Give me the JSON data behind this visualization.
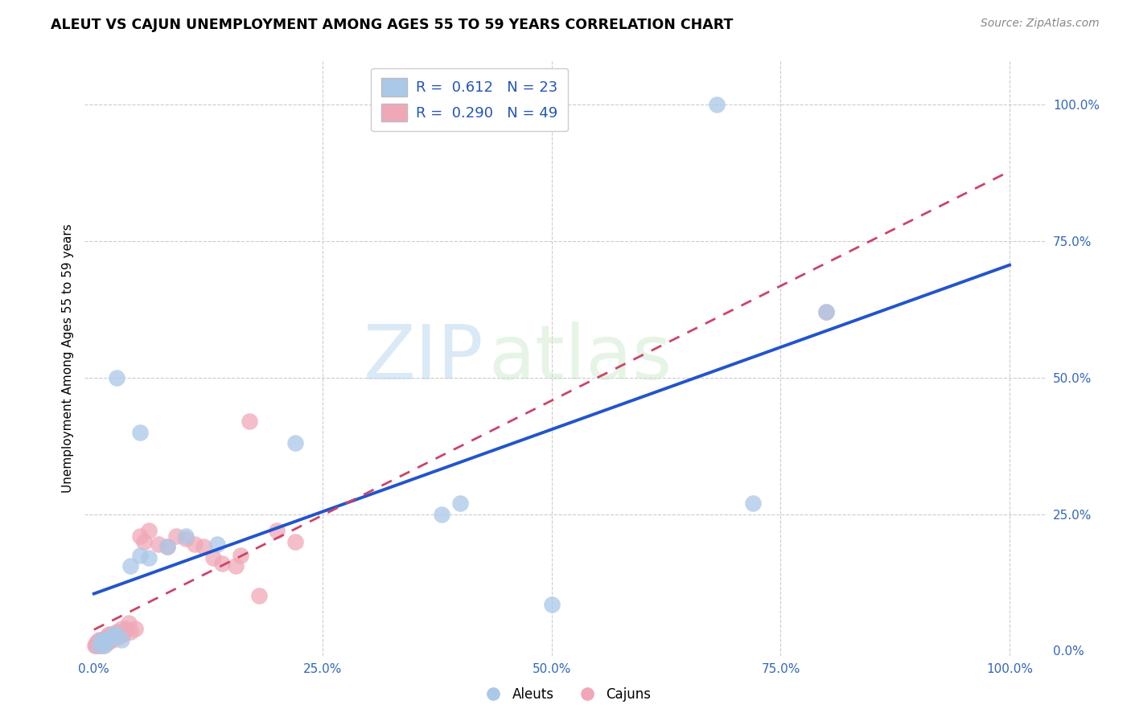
{
  "title": "ALEUT VS CAJUN UNEMPLOYMENT AMONG AGES 55 TO 59 YEARS CORRELATION CHART",
  "source": "Source: ZipAtlas.com",
  "ylabel_label": "Unemployment Among Ages 55 to 59 years",
  "x_tick_labels": [
    "0.0%",
    "25.0%",
    "50.0%",
    "75.0%",
    "100.0%"
  ],
  "x_tick_positions": [
    0,
    0.25,
    0.5,
    0.75,
    1.0
  ],
  "y_tick_labels": [
    "0.0%",
    "25.0%",
    "50.0%",
    "75.0%",
    "100.0%"
  ],
  "y_tick_positions": [
    0,
    0.25,
    0.5,
    0.75,
    1.0
  ],
  "xlim": [
    -0.01,
    1.04
  ],
  "ylim": [
    -0.01,
    1.08
  ],
  "aleut_color": "#aac8e8",
  "cajun_color": "#f0a8b8",
  "aleut_line_color": "#2255cc",
  "cajun_line_color": "#cc4466",
  "aleut_R": "0.612",
  "aleut_N": "23",
  "cajun_R": "0.290",
  "cajun_N": "49",
  "watermark_zip": "ZIP",
  "watermark_atlas": "atlas",
  "aleut_x": [
    0.005,
    0.008,
    0.01,
    0.012,
    0.015,
    0.02,
    0.025,
    0.03,
    0.04,
    0.05,
    0.06,
    0.08,
    0.1,
    0.135,
    0.22,
    0.38,
    0.4,
    0.5,
    0.72,
    0.8,
    0.68,
    0.025,
    0.05
  ],
  "aleut_y": [
    0.01,
    0.02,
    0.015,
    0.01,
    0.02,
    0.03,
    0.03,
    0.02,
    0.155,
    0.175,
    0.17,
    0.19,
    0.21,
    0.195,
    0.38,
    0.25,
    0.27,
    0.085,
    0.27,
    0.62,
    1.0,
    0.5,
    0.4
  ],
  "cajun_x": [
    0.001,
    0.002,
    0.003,
    0.004,
    0.005,
    0.006,
    0.007,
    0.008,
    0.009,
    0.01,
    0.011,
    0.012,
    0.013,
    0.014,
    0.015,
    0.016,
    0.017,
    0.018,
    0.019,
    0.02,
    0.021,
    0.022,
    0.023,
    0.025,
    0.027,
    0.03,
    0.032,
    0.035,
    0.038,
    0.04,
    0.045,
    0.05,
    0.055,
    0.06,
    0.07,
    0.08,
    0.09,
    0.1,
    0.11,
    0.12,
    0.13,
    0.14,
    0.155,
    0.16,
    0.17,
    0.18,
    0.2,
    0.22,
    0.8
  ],
  "cajun_y": [
    0.01,
    0.01,
    0.015,
    0.01,
    0.02,
    0.01,
    0.015,
    0.02,
    0.01,
    0.015,
    0.02,
    0.015,
    0.02,
    0.025,
    0.015,
    0.03,
    0.02,
    0.025,
    0.03,
    0.02,
    0.025,
    0.03,
    0.025,
    0.035,
    0.025,
    0.04,
    0.03,
    0.04,
    0.05,
    0.035,
    0.04,
    0.21,
    0.2,
    0.22,
    0.195,
    0.19,
    0.21,
    0.205,
    0.195,
    0.19,
    0.17,
    0.16,
    0.155,
    0.175,
    0.42,
    0.1,
    0.22,
    0.2,
    0.62
  ],
  "background_color": "#ffffff",
  "grid_color": "#cccccc"
}
